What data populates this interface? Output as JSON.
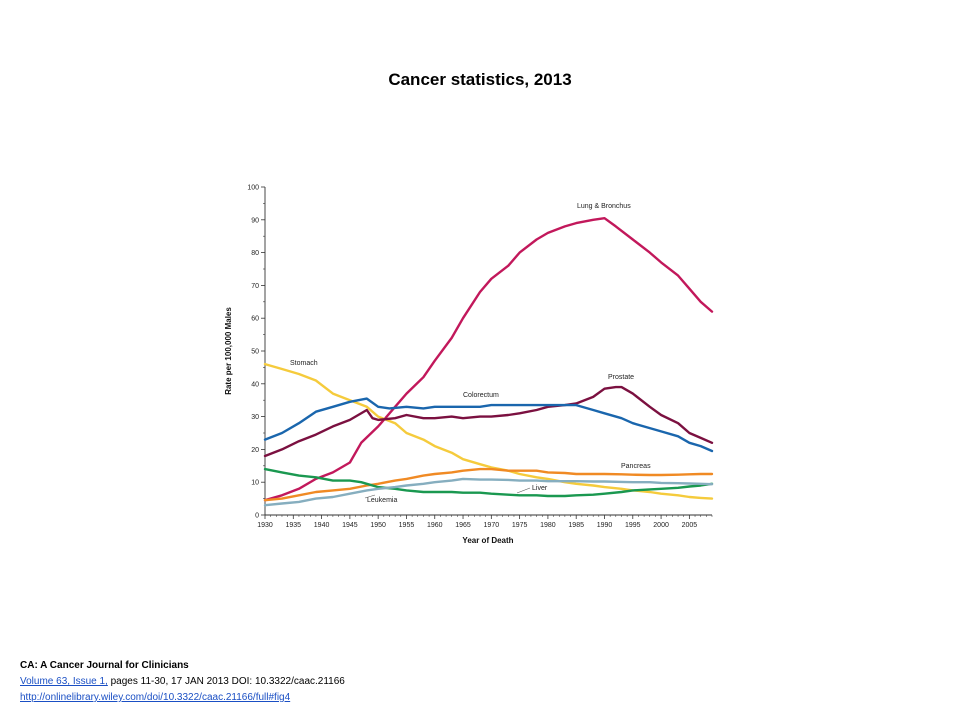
{
  "slide": {
    "title": "Cancer statistics, 2013"
  },
  "chart_data": {
    "type": "line",
    "xlabel": "Year of Death",
    "ylabel": "Rate per 100,000 Males",
    "xlim": [
      1930,
      2009
    ],
    "ylim": [
      0,
      100
    ],
    "x_ticks": [
      1930,
      1935,
      1940,
      1945,
      1950,
      1955,
      1960,
      1965,
      1970,
      1975,
      1980,
      1985,
      1990,
      1995,
      2000,
      2005
    ],
    "y_ticks": [
      0,
      10,
      20,
      30,
      40,
      50,
      60,
      70,
      80,
      90,
      100
    ],
    "grid": false,
    "legend": "inline labels",
    "series": [
      {
        "name": "Lung & Bronchus",
        "color": "#c2185b",
        "x": [
          1930,
          1933,
          1936,
          1939,
          1942,
          1945,
          1947,
          1950,
          1953,
          1955,
          1958,
          1960,
          1963,
          1965,
          1968,
          1970,
          1973,
          1975,
          1978,
          1980,
          1983,
          1985,
          1988,
          1990,
          1992,
          1995,
          1998,
          2000,
          2003,
          2005,
          2007,
          2009
        ],
        "y": [
          4.5,
          6,
          8,
          11,
          13,
          16,
          22,
          27,
          33,
          37,
          42,
          47,
          54,
          60,
          68,
          72,
          76,
          80,
          84,
          86,
          88,
          89,
          90,
          90.5,
          88,
          84,
          80,
          77,
          73,
          69,
          65,
          62
        ]
      },
      {
        "name": "Stomach",
        "color": "#f5cb3c",
        "x": [
          1930,
          1933,
          1936,
          1939,
          1942,
          1945,
          1948,
          1950,
          1953,
          1955,
          1958,
          1960,
          1963,
          1965,
          1968,
          1970,
          1973,
          1975,
          1978,
          1980,
          1983,
          1985,
          1988,
          1990,
          1993,
          1995,
          1998,
          2000,
          2003,
          2005,
          2007,
          2009
        ],
        "y": [
          46,
          44.5,
          43,
          41,
          37,
          35,
          33,
          30,
          28,
          25,
          23,
          21,
          19,
          17,
          15.5,
          14.5,
          13.5,
          12.5,
          11.5,
          11,
          10,
          9.5,
          9,
          8.5,
          8,
          7.5,
          7,
          6.5,
          6,
          5.5,
          5.2,
          5
        ]
      },
      {
        "name": "Prostate",
        "color": "#7b1040",
        "x": [
          1930,
          1933,
          1936,
          1939,
          1942,
          1945,
          1948,
          1949,
          1950,
          1953,
          1955,
          1958,
          1960,
          1963,
          1965,
          1968,
          1970,
          1973,
          1975,
          1978,
          1980,
          1983,
          1985,
          1988,
          1990,
          1992,
          1993,
          1995,
          1998,
          2000,
          2003,
          2005,
          2007,
          2009
        ],
        "y": [
          18,
          20,
          22.5,
          24.5,
          27,
          29,
          32,
          29.5,
          29,
          29.5,
          30.5,
          29.5,
          29.5,
          30,
          29.5,
          30,
          30,
          30.5,
          31,
          32,
          33,
          33.5,
          34,
          36,
          38.5,
          39,
          39,
          37,
          33,
          30.5,
          28,
          25,
          23.5,
          22
        ]
      },
      {
        "name": "Colorectum",
        "color": "#1a66ad",
        "x": [
          1930,
          1933,
          1936,
          1939,
          1942,
          1945,
          1948,
          1950,
          1952,
          1955,
          1958,
          1960,
          1963,
          1965,
          1968,
          1970,
          1973,
          1975,
          1978,
          1980,
          1983,
          1985,
          1988,
          1990,
          1993,
          1995,
          1998,
          2000,
          2003,
          2005,
          2007,
          2009
        ],
        "y": [
          23,
          25,
          28,
          31.5,
          33,
          34.5,
          35.5,
          33,
          32.5,
          33,
          32.5,
          33,
          33,
          33,
          33,
          33.5,
          33.5,
          33.5,
          33.5,
          33.5,
          33.5,
          33.5,
          32,
          31,
          29.5,
          28,
          26.5,
          25.5,
          24,
          22,
          21,
          19.5
        ]
      },
      {
        "name": "Pancreas",
        "color": "#f08a24",
        "x": [
          1930,
          1933,
          1936,
          1939,
          1942,
          1945,
          1948,
          1950,
          1953,
          1955,
          1958,
          1960,
          1963,
          1965,
          1968,
          1970,
          1973,
          1975,
          1978,
          1980,
          1983,
          1985,
          1988,
          1990,
          1993,
          1995,
          1998,
          2000,
          2003,
          2005,
          2007,
          2009
        ],
        "y": [
          4.5,
          5,
          6,
          7,
          7.5,
          8,
          9,
          9.5,
          10.5,
          11,
          12,
          12.5,
          13,
          13.5,
          14,
          14,
          13.5,
          13.5,
          13.5,
          13,
          12.8,
          12.5,
          12.5,
          12.5,
          12.4,
          12.3,
          12.2,
          12.2,
          12.3,
          12.4,
          12.5,
          12.5
        ]
      },
      {
        "name": "Liver",
        "color": "#1a9850",
        "x": [
          1930,
          1933,
          1936,
          1939,
          1942,
          1945,
          1947,
          1950,
          1953,
          1955,
          1958,
          1960,
          1963,
          1965,
          1968,
          1970,
          1973,
          1975,
          1978,
          1980,
          1983,
          1985,
          1988,
          1990,
          1993,
          1995,
          1998,
          2000,
          2003,
          2005,
          2007,
          2009
        ],
        "y": [
          14,
          13,
          12,
          11.5,
          10.5,
          10.5,
          10,
          8.5,
          8,
          7.5,
          7,
          7,
          7,
          6.8,
          6.8,
          6.5,
          6.2,
          6,
          6,
          5.8,
          5.8,
          6,
          6.2,
          6.5,
          7,
          7.5,
          7.8,
          8,
          8.3,
          8.7,
          9,
          9.5
        ]
      },
      {
        "name": "Leukemia",
        "color": "#86aebf",
        "x": [
          1930,
          1933,
          1936,
          1939,
          1942,
          1945,
          1948,
          1950,
          1953,
          1955,
          1958,
          1960,
          1963,
          1965,
          1968,
          1970,
          1973,
          1975,
          1978,
          1980,
          1983,
          1985,
          1988,
          1990,
          1993,
          1995,
          1998,
          2000,
          2003,
          2005,
          2007,
          2009
        ],
        "y": [
          3,
          3.5,
          4,
          5,
          5.5,
          6.5,
          7.5,
          8,
          8.5,
          9,
          9.5,
          10,
          10.5,
          11,
          10.8,
          10.8,
          10.7,
          10.5,
          10.5,
          10.3,
          10.3,
          10.3,
          10.2,
          10.2,
          10.1,
          10,
          10,
          9.8,
          9.7,
          9.6,
          9.5,
          9.4
        ]
      }
    ],
    "annotations": [
      "Lung & Bronchus",
      "Stomach",
      "Prostate",
      "Colorectum",
      "Pancreas",
      "Liver",
      "Leukemia"
    ]
  },
  "source": {
    "journal": "CA: A Cancer Journal for Clinicians",
    "volume_link": "Volume 63, Issue 1,",
    "citation": " pages 11-30, 17 JAN 2013 DOI: 10.3322/caac.21166",
    "url": "http://onlinelibrary.wiley.com/doi/10.3322/caac.21166/full#fig4"
  }
}
